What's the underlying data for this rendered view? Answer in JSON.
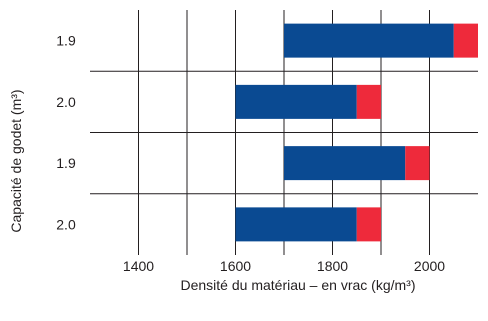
{
  "chart_data": {
    "type": "bar",
    "orientation": "horizontal-floating",
    "xlabel": "Densité du matériau – en vrac (kg/m³)",
    "ylabel": "Capacité de godet (m³)",
    "xlim": [
      1300,
      2100
    ],
    "x_ticks": [
      1400,
      1600,
      1800,
      2000
    ],
    "x_tick_labels": [
      "1400",
      "1600",
      "1800",
      "2000"
    ],
    "categories": [
      "1.9",
      "2.0",
      "1.9",
      "2.0"
    ],
    "series": [
      {
        "color": "#0a4a92",
        "ranges": [
          [
            1700,
            2050
          ],
          [
            1600,
            1850
          ],
          [
            1700,
            1950
          ],
          [
            1600,
            1850
          ]
        ]
      },
      {
        "color": "#ee2a3b",
        "ranges": [
          [
            2050,
            2100
          ],
          [
            1850,
            1900
          ],
          [
            1950,
            2000
          ],
          [
            1850,
            1900
          ]
        ]
      }
    ],
    "grid": true,
    "legend": "none"
  }
}
